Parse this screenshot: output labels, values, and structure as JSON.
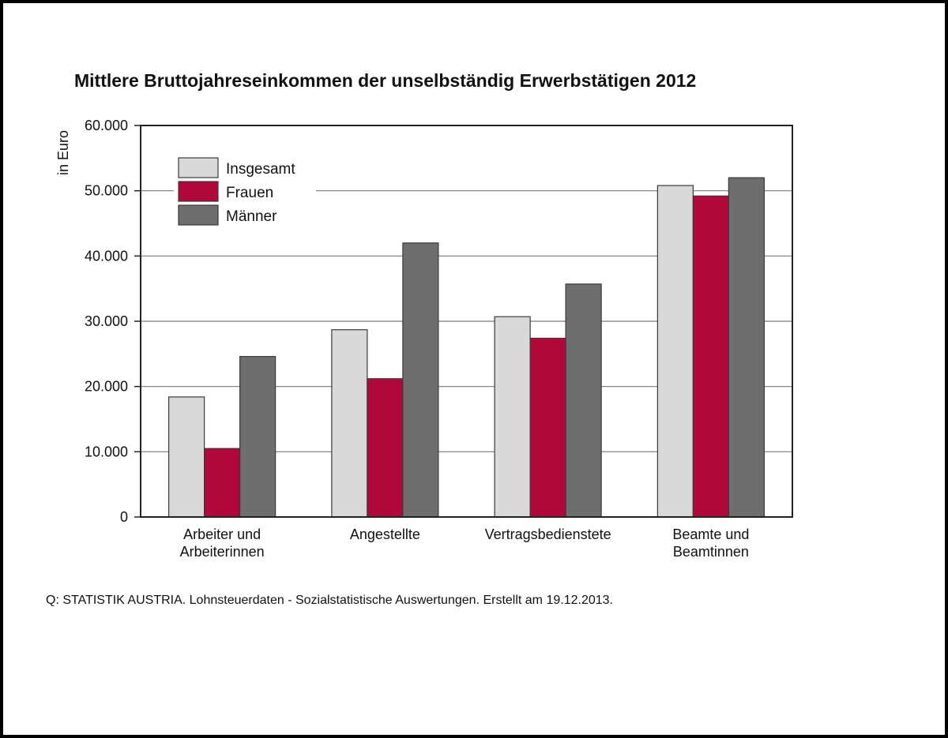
{
  "chart_data": {
    "type": "bar",
    "title": "Mittlere Bruttojahreseinkommen der unselbständig Erwerbstätigen 2012",
    "ylabel": "in Euro",
    "xlabel": "",
    "ylim": [
      0,
      60000
    ],
    "yticks": [
      0,
      10000,
      20000,
      30000,
      40000,
      50000,
      60000
    ],
    "ytick_labels": [
      "0",
      "10.000",
      "20.000",
      "30.000",
      "40.000",
      "50.000",
      "60.000"
    ],
    "categories": [
      [
        "Arbeiter und",
        "Arbeiterinnen"
      ],
      [
        "Angestellte"
      ],
      [
        "Vertragsbedienstete"
      ],
      [
        "Beamte und",
        "Beamtinnen"
      ]
    ],
    "series": [
      {
        "name": "Insgesamt",
        "color": "#d9d9d9",
        "values": [
          18400,
          28700,
          30700,
          50800
        ]
      },
      {
        "name": "Frauen",
        "color": "#b0083a",
        "values": [
          10500,
          21200,
          27400,
          49200
        ]
      },
      {
        "name": "Männer",
        "color": "#6e6e6e",
        "values": [
          24600,
          42000,
          35700,
          52000
        ]
      }
    ],
    "grid": true,
    "legend_position": "top-left",
    "source": "Q: STATISTIK AUSTRIA. Lohnsteuerdaten - Sozialstatistische Auswertungen. Erstellt am 19.12.2013."
  }
}
